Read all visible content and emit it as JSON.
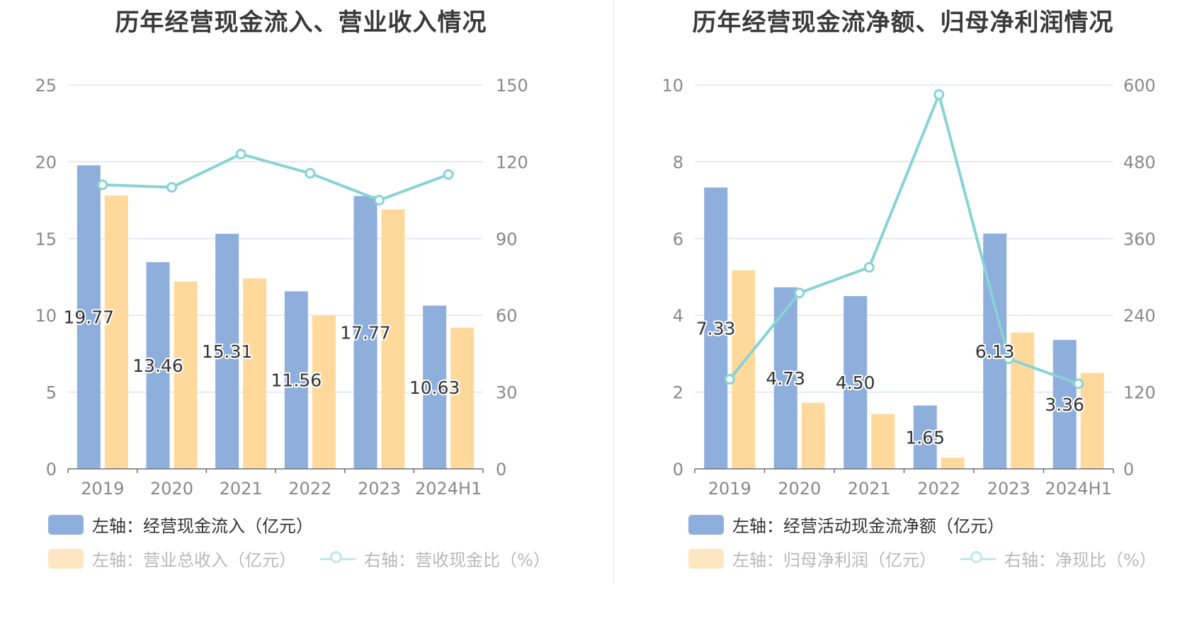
{
  "colors": {
    "bar_primary": "#8eaedb",
    "bar_secondary": "#ffd99b",
    "line": "#88d3d6",
    "grid": "#dfe3ef",
    "axis_text": "#888888",
    "legend_off_primary": "#fde7c3",
    "legend_off_line": "#bfe8ea"
  },
  "chart_data": [
    {
      "type": "bar",
      "title": "历年经营现金流入、营业收入情况",
      "categories": [
        "2019",
        "2020",
        "2021",
        "2022",
        "2023",
        "2024H1"
      ],
      "y_left": {
        "ylim": [
          0,
          25
        ],
        "ticks": [
          "0",
          "5",
          "10",
          "15",
          "20",
          "25"
        ]
      },
      "y_right": {
        "ylim": [
          0,
          150
        ],
        "ticks": [
          "0",
          "30",
          "60",
          "90",
          "120",
          "150"
        ]
      },
      "grid": true,
      "series": [
        {
          "name": "左轴：经营现金流入（亿元）",
          "axis": "left",
          "kind": "bar",
          "color": "#8eaedb",
          "values": [
            19.77,
            13.46,
            15.31,
            11.56,
            17.77,
            10.63
          ],
          "labels": [
            "19.77",
            "13.46",
            "15.31",
            "11.56",
            "17.77",
            "10.63"
          ]
        },
        {
          "name": "左轴：营业总收入（亿元）",
          "axis": "left",
          "kind": "bar",
          "color": "#ffd99b",
          "values": [
            17.8,
            12.2,
            12.4,
            10.0,
            16.9,
            9.2
          ]
        },
        {
          "name": "右轴：营收现金比（%）",
          "axis": "right",
          "kind": "line",
          "color": "#88d3d6",
          "values": [
            111,
            110,
            123,
            115.5,
            105,
            115
          ]
        }
      ],
      "legend": [
        {
          "label": "左轴：经营现金流入（亿元）",
          "type": "bar",
          "color": "#8eaedb",
          "state": "on"
        },
        {
          "label": "左轴：营业总收入（亿元）",
          "type": "bar",
          "color": "#fde7c3",
          "state": "off"
        },
        {
          "label": "右轴：营收现金比（%）",
          "type": "line",
          "color": "#bfe8ea",
          "state": "off"
        }
      ],
      "legend_placement": "bottom"
    },
    {
      "type": "bar",
      "title": "历年经营现金流净额、归母净利润情况",
      "categories": [
        "2019",
        "2020",
        "2021",
        "2022",
        "2023",
        "2024H1"
      ],
      "y_left": {
        "ylim": [
          0,
          10
        ],
        "ticks": [
          "0",
          "2",
          "4",
          "6",
          "8",
          "10"
        ]
      },
      "y_right": {
        "ylim": [
          0,
          600
        ],
        "ticks": [
          "0",
          "120",
          "240",
          "360",
          "480",
          "600"
        ]
      },
      "grid": true,
      "series": [
        {
          "name": "左轴：经营活动现金流净额（亿元）",
          "axis": "left",
          "kind": "bar",
          "color": "#8eaedb",
          "values": [
            7.33,
            4.73,
            4.5,
            1.65,
            6.13,
            3.36
          ],
          "labels": [
            "7.33",
            "4.73",
            "4.50",
            "1.65",
            "6.13",
            "3.36"
          ]
        },
        {
          "name": "左轴：归母净利润（亿元）",
          "axis": "left",
          "kind": "bar",
          "color": "#ffd99b",
          "values": [
            5.17,
            1.72,
            1.43,
            0.29,
            3.55,
            2.5
          ]
        },
        {
          "name": "右轴：净现比（%）",
          "axis": "right",
          "kind": "line",
          "color": "#88d3d6",
          "values": [
            140,
            275,
            315,
            585,
            172,
            133
          ]
        }
      ],
      "legend": [
        {
          "label": "左轴：经营活动现金流净额（亿元）",
          "type": "bar",
          "color": "#8eaedb",
          "state": "on"
        },
        {
          "label": "左轴：归母净利润（亿元）",
          "type": "bar",
          "color": "#fde7c3",
          "state": "off"
        },
        {
          "label": "右轴：净现比（%）",
          "type": "line",
          "color": "#bfe8ea",
          "state": "off"
        }
      ],
      "legend_placement": "bottom"
    }
  ]
}
